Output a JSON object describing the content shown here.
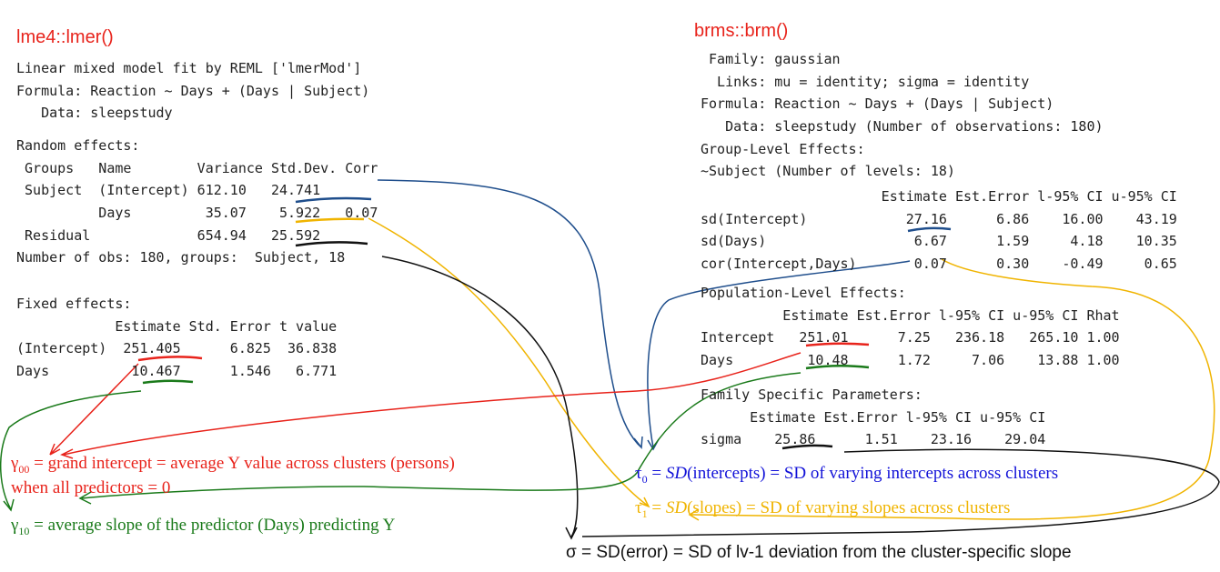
{
  "left": {
    "title": "lme4::lmer()",
    "blocks": [
      [
        "Linear mixed model fit by REML ['lmerMod']",
        "Formula: Reaction ~ Days + (Days | Subject)",
        "   Data: sleepstudy"
      ],
      [
        "Random effects:",
        " Groups   Name        Variance Std.Dev. Corr",
        " Subject  (Intercept) 612.10   24.741     ",
        "          Days         35.07    5.922   0.07",
        " Residual             654.94   25.592     ",
        "Number of obs: 180, groups:  Subject, 18"
      ],
      [
        "Fixed effects:",
        "            Estimate Std. Error t value",
        "(Intercept)  251.405      6.825  36.838",
        "Days          10.467      1.546   6.771"
      ]
    ]
  },
  "right": {
    "title": "brms::brm()",
    "blocks": [
      [
        " Family: gaussian",
        "  Links: mu = identity; sigma = identity",
        "Formula: Reaction ~ Days + (Days | Subject)",
        "   Data: sleepstudy (Number of observations: 180)",
        "Group-Level Effects:",
        "~Subject (Number of levels: 18)"
      ],
      [
        "                      Estimate Est.Error l-95% CI u-95% CI",
        "sd(Intercept)            27.16      6.86    16.00    43.19",
        "sd(Days)                  6.67      1.59     4.18    10.35",
        "cor(Intercept,Days)       0.07      0.30    -0.49     0.65"
      ],
      [
        "Population-Level Effects:",
        "          Estimate Est.Error l-95% CI u-95% CI Rhat",
        "Intercept   251.01      7.25   236.18   265.10 1.00",
        "Days         10.48      1.72     7.06    13.88 1.00"
      ],
      [
        "Family Specific Parameters:",
        "      Estimate Est.Error l-95% CI u-95% CI",
        "sigma    25.86      1.51    23.16    29.04"
      ]
    ]
  },
  "annotations": {
    "gamma00": {
      "symbol": "γ",
      "sub": "00",
      "text": " = grand intercept = average Y value across clusters (persons)",
      "line2": "when all predictors = 0"
    },
    "gamma10": {
      "symbol": "γ",
      "sub": "10",
      "text": " = average slope of the predictor (Days) predicting Y"
    },
    "tau0": {
      "symbol": "τ",
      "sub": "0",
      "parts": [
        " = ",
        "SD",
        "(intercepts) = SD of varying intercepts across clusters"
      ]
    },
    "tau1": {
      "symbol": "τ",
      "sub": "1",
      "parts": [
        " = ",
        "SD",
        "(slopes) = SD of varying slopes across clusters"
      ]
    },
    "sigma": {
      "text": "σ = SD(error) = SD of lv-1 deviation from the cluster-specific slope"
    }
  }
}
